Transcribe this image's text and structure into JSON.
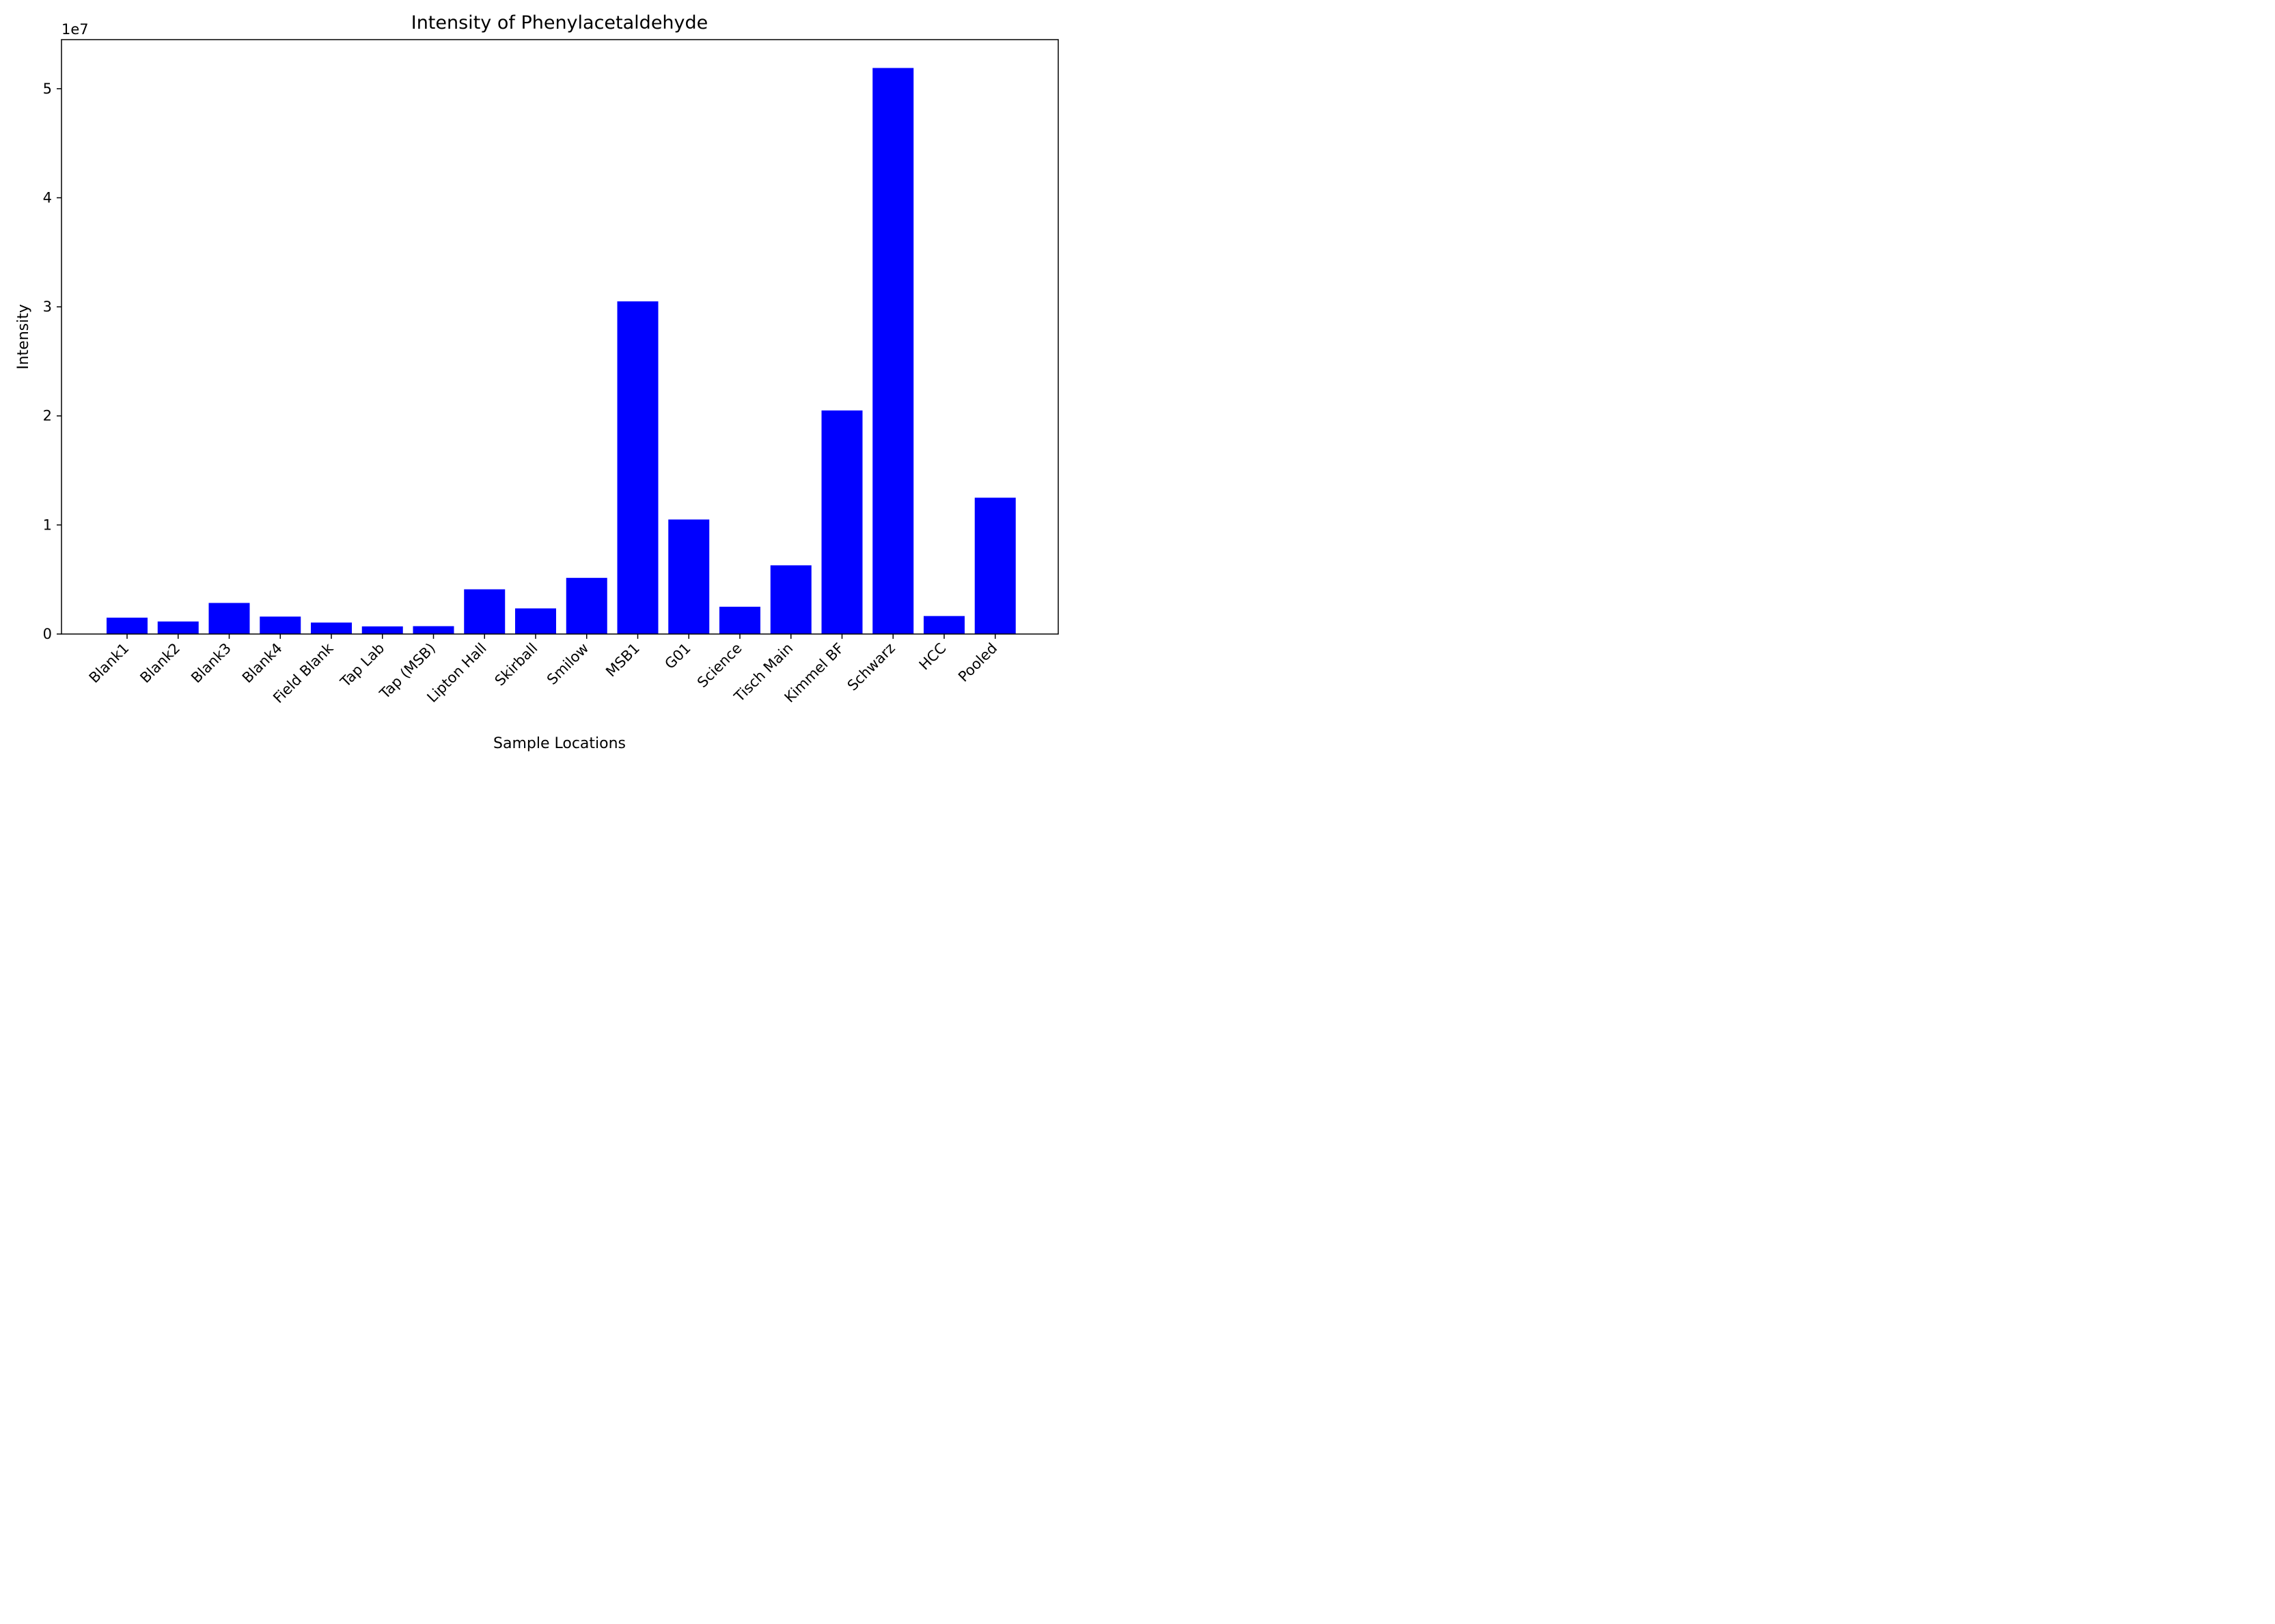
{
  "chart_data": {
    "type": "bar",
    "title": "Intensity of Phenylacetaldehyde",
    "xlabel": "Sample Locations",
    "ylabel": "Intensity",
    "y_offset_label": "1e7",
    "y_scale": 10000000,
    "ylim": [
      0,
      54500000
    ],
    "yticks": [
      0,
      10000000,
      20000000,
      30000000,
      40000000,
      50000000
    ],
    "ytick_labels": [
      "0",
      "1",
      "2",
      "3",
      "4",
      "5"
    ],
    "bar_color": "#0000ff",
    "grid": false,
    "legend": "none",
    "categories": [
      "Blank1",
      "Blank2",
      "Blank3",
      "Blank4",
      "Field Blank",
      "Tap Lab",
      "Tap (MSB)",
      "Lipton Hall",
      "Skirball",
      "Smilow",
      "MSB1",
      "G01",
      "Science",
      "Tisch Main",
      "Kimmel BF",
      "Schwarz",
      "HCC",
      "Pooled"
    ],
    "values": [
      1500000,
      1150000,
      2850000,
      1600000,
      1050000,
      700000,
      720000,
      4100000,
      2350000,
      5150000,
      30500000,
      10500000,
      2500000,
      6300000,
      20500000,
      51900000,
      1650000,
      12500000
    ]
  }
}
